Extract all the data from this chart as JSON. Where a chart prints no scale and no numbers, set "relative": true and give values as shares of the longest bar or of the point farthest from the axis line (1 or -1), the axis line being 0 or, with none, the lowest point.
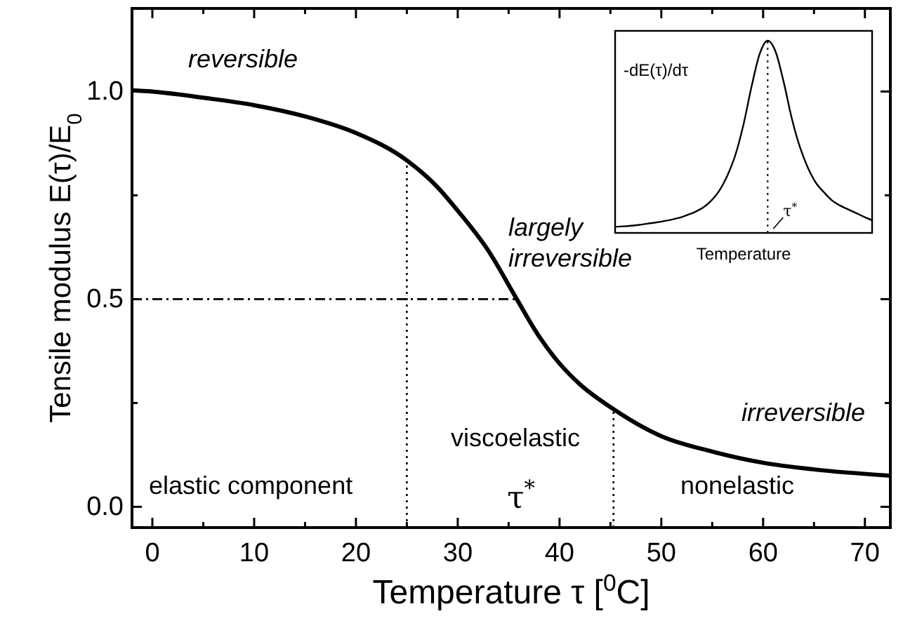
{
  "chart_data": [
    {
      "type": "line",
      "xlabel": "Temperature τ [$^{0}$C]",
      "ylabel": "Tensile modulus E(τ)/E$_{0}$",
      "xlim": [
        -2,
        72.5
      ],
      "ylim": [
        -0.05,
        1.2
      ],
      "xticks": [
        0,
        {
          "value": 5,
          "label": null
        },
        10,
        {
          "value": 15,
          "label": null
        },
        20,
        {
          "value": 25,
          "label": null
        },
        30,
        {
          "value": 35,
          "label": null
        },
        40,
        {
          "value": 45,
          "label": null
        },
        50,
        {
          "value": 55,
          "label": null
        },
        60,
        {
          "value": 65,
          "label": null
        },
        70
      ],
      "yticks": [
        {
          "value": 0,
          "label": "0.0"
        },
        {
          "value": 0.25,
          "label": null
        },
        {
          "value": 0.5,
          "label": "0.5"
        },
        {
          "value": 0.75,
          "label": null
        },
        {
          "value": 1,
          "label": "1.0"
        }
      ],
      "grid": false,
      "marker": "none",
      "line_style": "solid",
      "series": [
        {
          "color": "#000000",
          "x": [
            -2,
            0,
            5,
            10,
            15,
            20,
            25,
            28,
            30,
            33,
            35.8,
            38,
            40,
            42,
            45,
            50,
            55,
            60,
            65,
            72.5
          ],
          "values": [
            1.003,
            1.0,
            0.985,
            0.967,
            0.94,
            0.9,
            0.834,
            0.77,
            0.713,
            0.617,
            0.5,
            0.41,
            0.345,
            0.295,
            0.24,
            0.17,
            0.133,
            0.106,
            0.09,
            0.075
          ]
        }
      ],
      "ref_lines": [
        {
          "axis": "x",
          "value": 25,
          "line_style": "dotted",
          "color": "#000000"
        },
        {
          "axis": "x",
          "value": 45.3,
          "line_style": "dotted",
          "color": "#000000"
        },
        {
          "axis": "y",
          "value": 0.5,
          "line_style": "dashdot",
          "color": "#000000"
        }
      ],
      "annotations": [
        "reversible",
        "largely irreversible",
        "irreversible",
        "elastic component",
        "viscoelastic",
        "nonelastic",
        "τ$^{*}$"
      ]
    },
    {
      "type": "line",
      "relative": true,
      "xlabel": "Temperature",
      "categories": [
        null,
        null,
        null,
        null,
        null,
        null,
        null,
        null,
        null,
        null,
        null,
        null,
        null,
        null,
        null,
        null,
        null,
        null,
        null,
        null,
        null,
        null,
        null,
        null,
        null,
        null,
        null,
        null,
        null,
        null,
        null,
        null,
        null
      ],
      "series": [
        {
          "color": "#000000",
          "values": [
            0.018,
            0.02,
            0.023,
            0.028,
            0.034,
            0.04,
            0.047,
            0.055,
            0.065,
            0.08,
            0.097,
            0.12,
            0.157,
            0.21,
            0.29,
            0.4,
            0.56,
            0.76,
            0.93,
            1.0,
            0.94,
            0.78,
            0.59,
            0.44,
            0.33,
            0.25,
            0.2,
            0.157,
            0.13,
            0.11,
            0.09,
            0.07,
            0.052
          ]
        }
      ],
      "annotations": [
        "-dE(τ)/dτ",
        "τ$^{*}$"
      ]
    }
  ]
}
